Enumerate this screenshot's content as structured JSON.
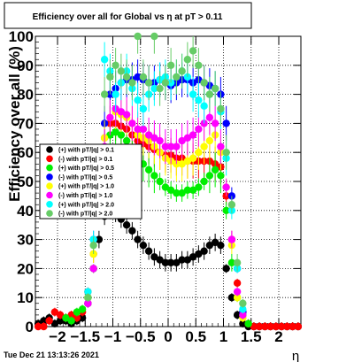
{
  "chart_data": {
    "type": "scatter",
    "title": "Efficiency over all for Global vs   η at pT > 0.11",
    "xlabel": "η",
    "ylabel": "Efficiency over all (%)",
    "xlim": [
      -2.4,
      2.4
    ],
    "ylim": [
      0,
      100
    ],
    "grid": true,
    "legend_position": "left-middle",
    "x_ticks": [
      {
        "value": -2,
        "label": "−2"
      },
      {
        "value": -1.5,
        "label": "−1.5"
      },
      {
        "value": -1,
        "label": "−1"
      },
      {
        "value": -0.5,
        "label": "−0.5"
      },
      {
        "value": 0,
        "label": "0"
      },
      {
        "value": 0.5,
        "label": "0.5"
      },
      {
        "value": 1,
        "label": "1"
      },
      {
        "value": 1.5,
        "label": "1.5"
      },
      {
        "value": 2,
        "label": "2"
      }
    ],
    "y_ticks": [
      {
        "value": 0,
        "label": "0"
      },
      {
        "value": 10,
        "label": "10"
      },
      {
        "value": 20,
        "label": "20"
      },
      {
        "value": 30,
        "label": "30"
      },
      {
        "value": 40,
        "label": "40"
      },
      {
        "value": 50,
        "label": "50"
      },
      {
        "value": 60,
        "label": "60"
      },
      {
        "value": 70,
        "label": "70"
      },
      {
        "value": 80,
        "label": "80"
      },
      {
        "value": 90,
        "label": "90"
      },
      {
        "value": 100,
        "label": "100"
      }
    ],
    "series": [
      {
        "name": "(+) with pT/|q| > 0.1",
        "color": "#000000",
        "x": [
          -2.35,
          -2.25,
          -2.15,
          -2.05,
          -1.95,
          -1.85,
          -1.75,
          -1.65,
          -1.55,
          -1.45,
          -1.35,
          -1.25,
          -1.15,
          -1.05,
          -0.95,
          -0.85,
          -0.75,
          -0.65,
          -0.55,
          -0.45,
          -0.35,
          -0.25,
          -0.15,
          -0.05,
          0.05,
          0.15,
          0.25,
          0.35,
          0.45,
          0.55,
          0.65,
          0.75,
          0.85,
          0.95,
          1.05,
          1.15,
          1.25,
          1.35,
          1.45,
          1.55,
          1.65,
          1.75,
          1.85,
          1.95,
          2.05,
          2.15,
          2.25,
          2.35
        ],
        "y": [
          1,
          2,
          3,
          1,
          2,
          2,
          1,
          2,
          3,
          8,
          20,
          30,
          38,
          40,
          39,
          37,
          35,
          33,
          30,
          28,
          26,
          24,
          23,
          22,
          22,
          22,
          23,
          23,
          24,
          25,
          26,
          28,
          29,
          28,
          20,
          10,
          4,
          1,
          0,
          0,
          0,
          0,
          0,
          0,
          0,
          0,
          0,
          0
        ]
      },
      {
        "name": "(-) with pT/|q| > 0.1",
        "color": "#ff0000",
        "x": [
          -2.35,
          -2.25,
          -2.15,
          -2.05,
          -1.95,
          -1.85,
          -1.75,
          -1.65,
          -1.55,
          -1.45,
          -1.35,
          -1.25,
          -1.15,
          -1.05,
          -0.95,
          -0.85,
          -0.75,
          -0.65,
          -0.55,
          -0.45,
          -0.35,
          -0.25,
          -0.15,
          -0.05,
          0.05,
          0.15,
          0.25,
          0.35,
          0.45,
          0.55,
          0.65,
          0.75,
          0.85,
          0.95,
          1.05,
          1.15,
          1.25,
          1.35,
          1.45,
          1.55,
          1.65,
          1.75,
          1.85,
          1.95,
          2.05,
          2.15,
          2.25,
          2.35
        ],
        "y": [
          0,
          0,
          2,
          5,
          4,
          3,
          4,
          3,
          5,
          12,
          25,
          45,
          65,
          70,
          70,
          69,
          68,
          66,
          64,
          63,
          62,
          61,
          60,
          59,
          59,
          58,
          58,
          57,
          57,
          57,
          57,
          57,
          56,
          55,
          45,
          30,
          15,
          5,
          1,
          0,
          0,
          0,
          0,
          0,
          0,
          0,
          0,
          0
        ]
      },
      {
        "name": "(+) with pT/|q| > 0.5",
        "color": "#00ee00",
        "x": [
          -1.85,
          -1.75,
          -1.65,
          -1.55,
          -1.45,
          -1.35,
          -1.25,
          -1.15,
          -1.05,
          -0.95,
          -0.85,
          -0.75,
          -0.65,
          -0.55,
          -0.45,
          -0.35,
          -0.25,
          -0.15,
          -0.05,
          0.05,
          0.15,
          0.25,
          0.35,
          0.45,
          0.55,
          0.65,
          0.75,
          0.85,
          0.95,
          1.05,
          1.15,
          1.25,
          1.35,
          1.45
        ],
        "y": [
          3,
          2,
          5,
          6,
          10,
          20,
          40,
          60,
          66,
          67,
          66,
          64,
          60,
          58,
          56,
          54,
          52,
          50,
          48,
          47,
          46,
          46,
          47,
          47,
          48,
          50,
          52,
          54,
          52,
          40,
          22,
          10,
          4,
          1
        ]
      },
      {
        "name": "(-) with pT/|q| > 0.5",
        "color": "#0000ff",
        "x": [
          -1.35,
          -1.25,
          -1.15,
          -1.05,
          -0.95,
          -0.85,
          -0.75,
          -0.65,
          -0.55,
          -0.45,
          -0.35,
          -0.25,
          -0.15,
          -0.05,
          0.05,
          0.15,
          0.25,
          0.35,
          0.45,
          0.55,
          0.65,
          0.75,
          0.85,
          0.95,
          1.05,
          1.15,
          1.25,
          1.35
        ],
        "y": [
          30,
          50,
          70,
          80,
          82,
          84,
          85,
          85,
          86,
          85,
          84,
          84,
          85,
          84,
          83,
          84,
          85,
          85,
          84,
          85,
          84,
          83,
          82,
          80,
          70,
          45,
          20,
          5
        ]
      },
      {
        "name": "(+) with pT/|q| > 1.0",
        "color": "#ffff00",
        "x": [
          -1.45,
          -1.35,
          -1.25,
          -1.15,
          -1.05,
          -0.95,
          -0.85,
          -0.75,
          -0.65,
          -0.55,
          -0.45,
          -0.35,
          -0.25,
          -0.15,
          -0.05,
          0.05,
          0.15,
          0.25,
          0.35,
          0.45,
          0.55,
          0.65,
          0.75,
          0.85,
          0.95,
          1.05,
          1.15,
          1.25,
          1.35
        ],
        "y": [
          10,
          25,
          45,
          65,
          72,
          74,
          73,
          72,
          70,
          66,
          65,
          64,
          62,
          60,
          58,
          57,
          56,
          56,
          57,
          58,
          60,
          62,
          64,
          66,
          60,
          48,
          28,
          10,
          3
        ]
      },
      {
        "name": "(-) with pT/|q| > 1.0",
        "color": "#ff00ff",
        "x": [
          -1.45,
          -1.35,
          -1.25,
          -1.15,
          -1.05,
          -0.95,
          -0.85,
          -0.75,
          -0.65,
          -0.55,
          -0.45,
          -0.35,
          -0.25,
          -0.15,
          -0.05,
          0.05,
          0.15,
          0.25,
          0.35,
          0.45,
          0.55,
          0.65,
          0.75,
          0.85,
          0.95,
          1.05,
          1.15,
          1.25,
          1.35
        ],
        "y": [
          8,
          20,
          40,
          62,
          72,
          75,
          74,
          73,
          70,
          68,
          68,
          66,
          65,
          64,
          62,
          62,
          62,
          64,
          65,
          66,
          68,
          70,
          72,
          70,
          62,
          48,
          30,
          12,
          4
        ]
      },
      {
        "name": "(+) with pT/|q| > 2.0",
        "color": "#00ffff",
        "x": [
          -1.45,
          -1.35,
          -1.25,
          -1.15,
          -1.05,
          -0.95,
          -0.85,
          -0.75,
          -0.65,
          -0.55,
          -0.45,
          -0.35,
          -0.25,
          -0.15,
          -0.05,
          0.05,
          0.15,
          0.25,
          0.35,
          0.45,
          0.55,
          0.65,
          0.75,
          0.85,
          0.95,
          1.05,
          1.15,
          1.25,
          1.35
        ],
        "y": [
          12,
          30,
          55,
          92,
          88,
          80,
          84,
          88,
          82,
          78,
          75,
          80,
          82,
          85,
          86,
          84,
          86,
          88,
          86,
          80,
          78,
          76,
          80,
          82,
          74,
          58,
          40,
          20,
          6
        ]
      },
      {
        "name": "(-) with pT/|q| > 2.0",
        "color": "#66cc66",
        "x": [
          -1.45,
          -1.35,
          -1.25,
          -1.15,
          -1.05,
          -0.95,
          -0.85,
          -0.75,
          -0.65,
          -0.55,
          -0.45,
          -0.35,
          -0.25,
          -0.15,
          -0.05,
          0.05,
          0.15,
          0.25,
          0.35,
          0.45,
          0.55,
          0.65,
          0.75,
          0.85,
          0.95,
          1.05,
          1.15,
          1.25,
          1.35
        ],
        "y": [
          10,
          28,
          50,
          80,
          86,
          90,
          88,
          86,
          84,
          100,
          86,
          84,
          100,
          82,
          84,
          90,
          86,
          88,
          92,
          95,
          90,
          84,
          80,
          82,
          75,
          60,
          42,
          22,
          8
        ]
      }
    ]
  },
  "footer": {
    "timestamp": "Tue Dec 21 13:13:26 2021"
  }
}
